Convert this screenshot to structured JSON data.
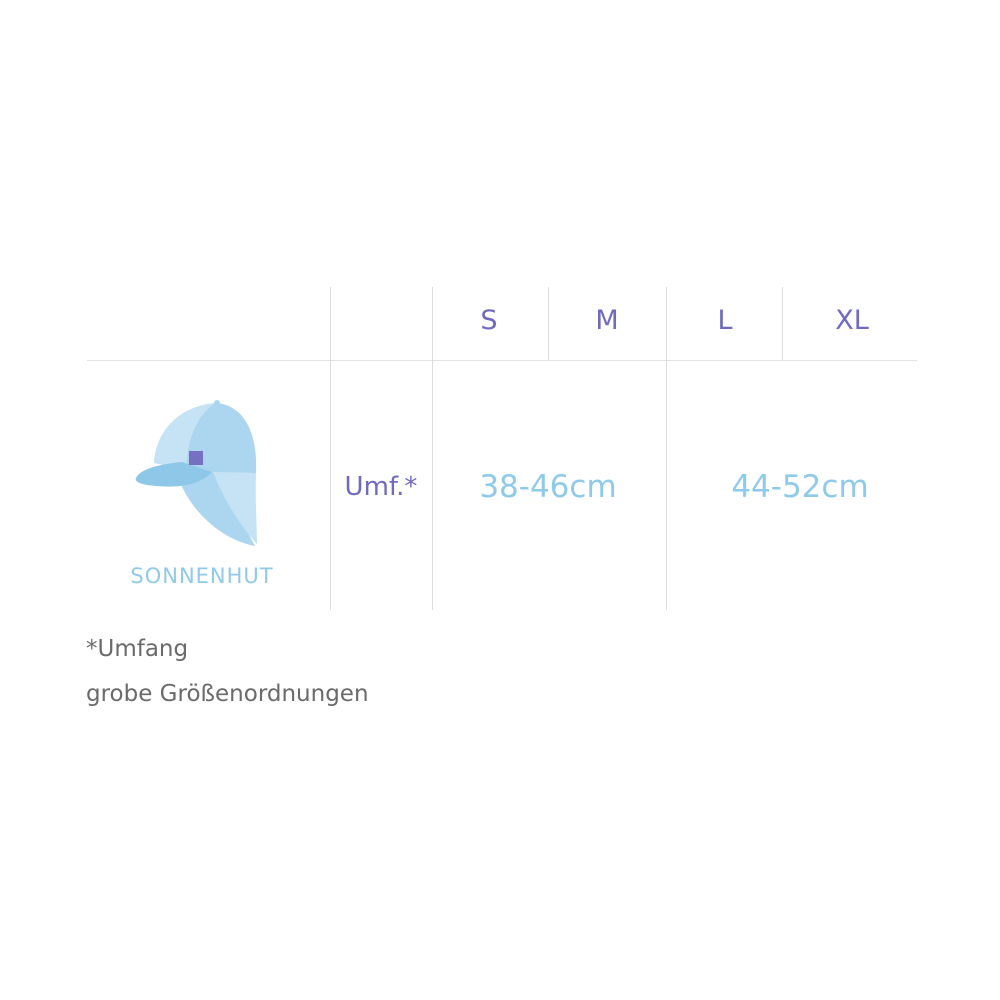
{
  "table": {
    "sizes": [
      "S",
      "M",
      "L",
      "XL"
    ],
    "product": {
      "name": "SONNENHUT",
      "icon": "sun-hat-icon"
    },
    "measure_label": "Umf.*",
    "values": [
      "38-46cm",
      "44-52cm"
    ]
  },
  "footnotes": [
    "*Umfang",
    "grobe Größenordnungen"
  ],
  "colors": {
    "header": "#6f6abf",
    "value": "#8fcaea",
    "note": "#6a6a6a"
  }
}
